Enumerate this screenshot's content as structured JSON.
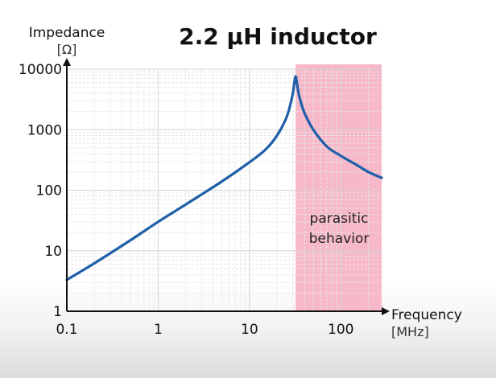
{
  "chart_data": {
    "type": "line",
    "title": "2.2 µH inductor",
    "ylabel": "Impedance",
    "yunit": "[Ω]",
    "xlabel": "Frequency",
    "xunit": "[MHz]",
    "xscale": "log",
    "yscale": "log",
    "xlim": [
      0.1,
      280
    ],
    "ylim": [
      1,
      10000
    ],
    "xticks": [
      0.1,
      1,
      10,
      100
    ],
    "xtick_labels": [
      "0.1",
      "1",
      "10",
      "100"
    ],
    "yticks": [
      1,
      10,
      100,
      1000,
      10000
    ],
    "ytick_labels": [
      "1",
      "10",
      "100",
      "1000",
      "10000"
    ],
    "grid": true,
    "line_color": "#1f5fa8",
    "shaded_region": {
      "x_range": [
        32,
        280
      ],
      "color": "#f7b8c9",
      "label_lines": [
        "parasitic",
        "behavior"
      ]
    },
    "series": [
      {
        "x": [
          0.1,
          0.2,
          0.5,
          1,
          2,
          5,
          10,
          15,
          20,
          25,
          28,
          30,
          31,
          32,
          33,
          35,
          40,
          50,
          70,
          100,
          150,
          200,
          280
        ],
        "y": [
          3.3,
          6.2,
          15,
          30,
          58,
          140,
          290,
          470,
          800,
          1500,
          2600,
          4200,
          6000,
          7600,
          6000,
          3600,
          1900,
          1000,
          530,
          370,
          260,
          200,
          160
        ]
      }
    ]
  }
}
